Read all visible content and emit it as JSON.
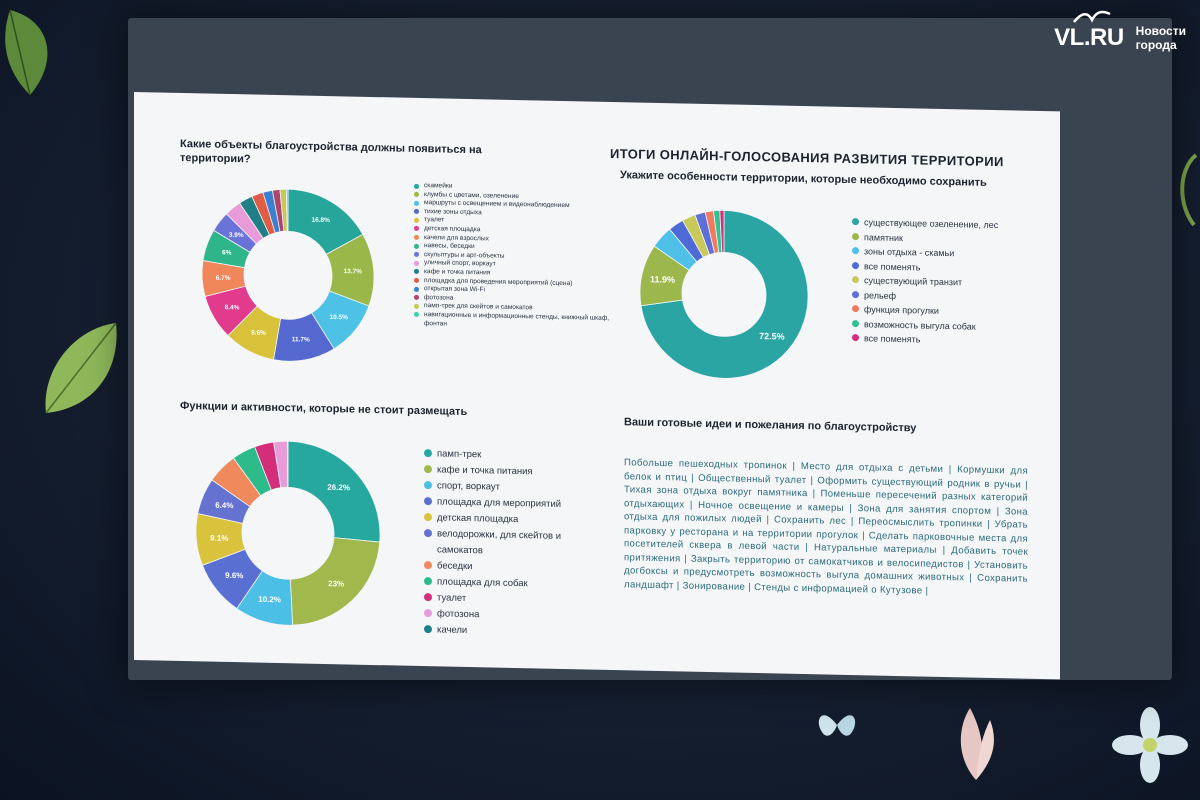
{
  "watermark": {
    "brand": "VL.RU",
    "line1": "Новости",
    "line2": "города"
  },
  "slide": {
    "title": "ИТОГИ ОНЛАЙН-ГОЛОСОВАНИЯ РАЗВИТИЯ ТЕРРИТОРИИ",
    "q1": {
      "title": "Какие объекты благоустройства должны появиться на территории?",
      "legend": [
        {
          "label": "скамейки",
          "color": "#26a69a"
        },
        {
          "label": "клумбы с цветами, озеленение",
          "color": "#9ab84a"
        },
        {
          "label": "маршруты с освещением и видеонаблюдением",
          "color": "#4ec2e6"
        },
        {
          "label": "тихие зоны отдыха",
          "color": "#5468cf"
        },
        {
          "label": "туалет",
          "color": "#d8c23a"
        },
        {
          "label": "детская площадка",
          "color": "#e23a8c"
        },
        {
          "label": "качели для взрослых",
          "color": "#f0875a"
        },
        {
          "label": "навесы, беседки",
          "color": "#2fb58a"
        },
        {
          "label": "скульптуры и арт-объекты",
          "color": "#6a74d8"
        },
        {
          "label": "уличный спорт, воркаут",
          "color": "#e99ad8"
        },
        {
          "label": "кафе и точка питания",
          "color": "#1f7f86"
        },
        {
          "label": "площадка для проведения мероприятий (сцена)",
          "color": "#e25b45"
        },
        {
          "label": "открытая зона Wi-Fi",
          "color": "#3b7fd0"
        },
        {
          "label": "фотозона",
          "color": "#b0436c"
        },
        {
          "label": "памп-трек для скейтов и самокатов",
          "color": "#c7c955"
        },
        {
          "label": "навигационные и информационные стенды, книжный шкаф, фонтан",
          "color": "#3ad0b0"
        }
      ],
      "values": [
        16.8,
        13.7,
        10.5,
        11.7,
        9.6,
        8.4,
        6.7,
        6,
        3.9,
        3.2,
        2.6,
        2.2,
        1.8,
        1.4,
        1.2,
        0.3
      ],
      "labels": [
        "16.8%",
        "13.7%",
        "10.5%",
        "11.7%",
        "9.6%",
        "8.4%",
        "6.7%",
        "6%",
        "3.9%",
        "",
        "",
        "",
        "",
        "",
        "",
        ""
      ]
    },
    "q2": {
      "title": "Укажите особенности территории, которые необходимо сохранить",
      "legend": [
        {
          "label": "существующее озеленение, лес",
          "color": "#2aa5a4"
        },
        {
          "label": "памятник",
          "color": "#9cb84d"
        },
        {
          "label": "зоны отдыха - скамьи",
          "color": "#4fc1e8"
        },
        {
          "label": "все поменять",
          "color": "#4e6ad6"
        },
        {
          "label": "существующий транзит",
          "color": "#c8c95a"
        },
        {
          "label": "рельеф",
          "color": "#5f6fd8"
        },
        {
          "label": "функция прогулки",
          "color": "#f07a5e"
        },
        {
          "label": "возможность выгула собак",
          "color": "#30c291"
        },
        {
          "label": "все поменять",
          "color": "#d4307c"
        }
      ],
      "values": [
        72.5,
        11.9,
        4.4,
        3.0,
        2.6,
        2.0,
        1.6,
        1.2,
        0.8
      ],
      "labels": [
        "72.5%",
        "11.9%",
        "",
        "",
        "",
        "",
        "",
        "",
        ""
      ]
    },
    "q3": {
      "title": "Функции и активности, которые не стоит размещать",
      "legend": [
        {
          "label": "памп-трек",
          "color": "#27a89f"
        },
        {
          "label": "кафе и точка питания",
          "color": "#a0b84c"
        },
        {
          "label": "спорт, воркаут",
          "color": "#4bbfe6"
        },
        {
          "label": "площадка для мероприятий",
          "color": "#5a6fd2"
        },
        {
          "label": "детская площадка",
          "color": "#d9c23c"
        },
        {
          "label": "велодорожки, для скейтов и самокатов",
          "color": "#6672d0"
        },
        {
          "label": "беседки",
          "color": "#f08a5c"
        },
        {
          "label": "площадка для собак",
          "color": "#2dbb8c"
        },
        {
          "label": "туалет",
          "color": "#d42d7a"
        },
        {
          "label": "фотозона",
          "color": "#e79bd8"
        },
        {
          "label": "качели",
          "color": "#1f7f86"
        }
      ],
      "values": [
        26.2,
        23,
        10.2,
        9.6,
        9.1,
        6.4,
        5.4,
        4.2,
        3.4,
        2.4,
        0.1
      ],
      "labels": [
        "26.2%",
        "23%",
        "10.2%",
        "9.6%",
        "9.1%",
        "6.4%",
        "",
        "",
        "",
        "",
        ""
      ]
    },
    "q4": {
      "title": "Ваши готовые идеи и пожелания по благоустройству",
      "text": "Побольше пешеходных тропинок | Место для отдыха с детьми | Кормушки для белок и птиц | Общественный туалет | Оформить существующий родник в ручьи | Тихая зона отдыха вокруг памятника | Поменьше пересечений разных категорий отдыхающих | Ночное освещение и камеры | Зона для занятия спортом | Зона отдыха для пожилых людей | Сохранить лес | Переосмыслить тропинки | Убрать парковку у ресторана и на территории прогулок | Сделать парковочные места для посетителей сквера в левой части | Натуральные материалы | Добавить точек притяжения | Закрыть территорию от самокатчиков и велосипедистов | Установить догбоксы и предусмотреть возможность выгула домашних животных | Сохранить ландшафт | Зонирование | Стенды с информацией о Кутузове |"
    }
  }
}
